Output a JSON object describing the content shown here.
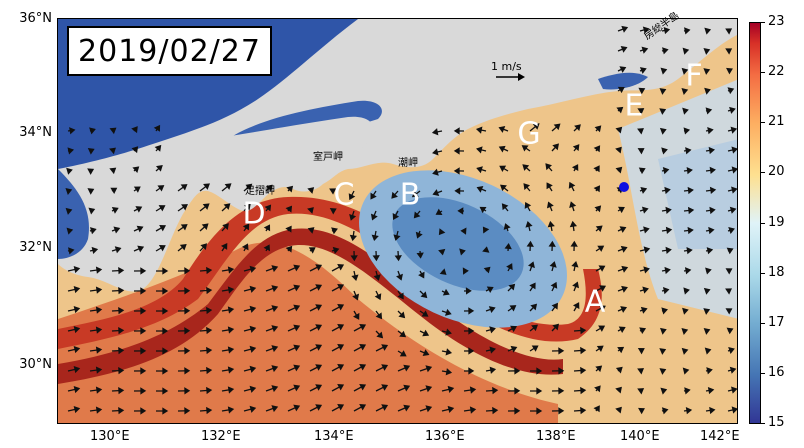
{
  "date": "2019/02/27",
  "lat_labels": [
    "36°N",
    "34°N",
    "32°N",
    "30°N"
  ],
  "lon_labels": [
    "130°E",
    "132°E",
    "134°E",
    "136°E",
    "138°E",
    "140°E",
    "142°E"
  ],
  "colorbar": {
    "min": 15,
    "max": 23,
    "ticks": [
      "23",
      "22",
      "21",
      "20",
      "19",
      "18",
      "17",
      "16",
      "15"
    ]
  },
  "scale_label": "1 m/s",
  "region_labels": [
    "A",
    "B",
    "C",
    "D",
    "E",
    "F",
    "G"
  ],
  "place_labels": [
    "足摺岬",
    "室戸岬",
    "潮岬",
    "房総半島"
  ],
  "colors": {
    "land": "#d9d9d9",
    "warm": "#c0392b",
    "cold": "#4a78b0",
    "marker": "#1010e0"
  }
}
